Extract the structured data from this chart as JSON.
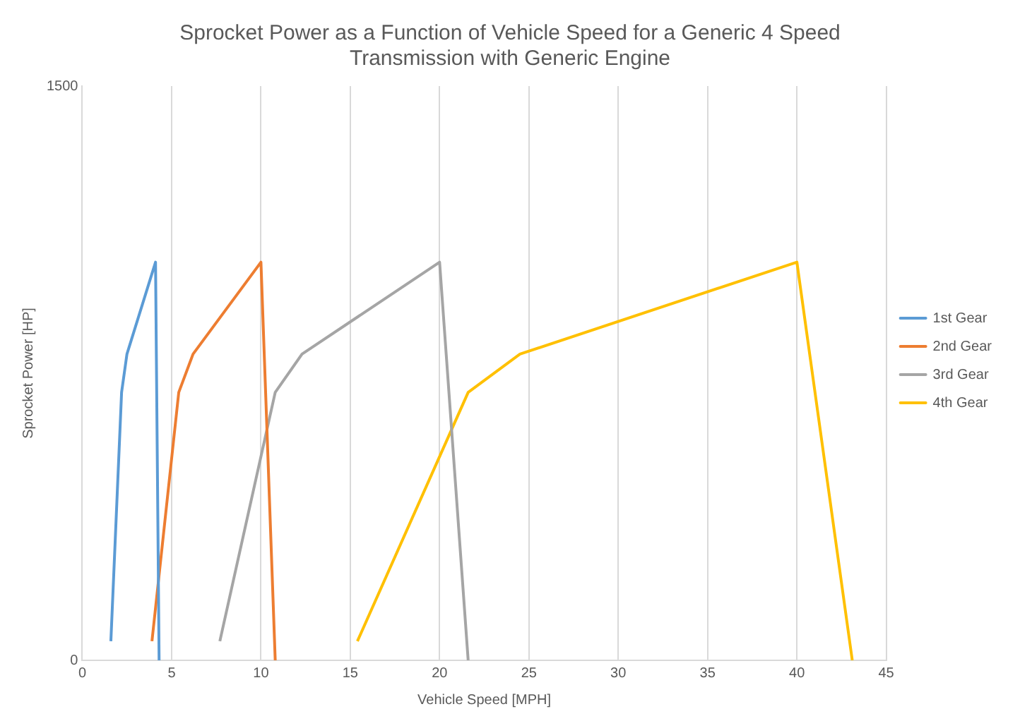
{
  "chart_data": {
    "type": "line",
    "title": "Sprocket Power as a Function of Vehicle Speed for a Generic 4 Speed Transmission with Generic Engine",
    "xlabel": "Vehicle Speed [MPH]",
    "ylabel": "Sprocket Power [HP]",
    "xlim": [
      0,
      45
    ],
    "xticks": [
      0,
      5,
      10,
      15,
      20,
      25,
      30,
      35,
      40,
      45
    ],
    "ylim": [
      0,
      1500
    ],
    "yticks": [
      0,
      1500
    ],
    "grid": "x",
    "legend": "right",
    "marker": "none",
    "series": [
      {
        "name": "1st Gear",
        "color": "#5b9bd5",
        "x": [
          1.6,
          2.2,
          2.5,
          4.1,
          4.3
        ],
        "values": [
          50,
          700,
          800,
          1040,
          0
        ]
      },
      {
        "name": "2nd Gear",
        "color": "#ed7d31",
        "x": [
          3.9,
          5.4,
          6.2,
          10,
          10.8
        ],
        "values": [
          50,
          700,
          800,
          1040,
          0
        ]
      },
      {
        "name": "3rd Gear",
        "color": "#a5a5a5",
        "x": [
          7.7,
          10.8,
          12.3,
          20,
          21.6
        ],
        "values": [
          50,
          700,
          800,
          1040,
          0
        ]
      },
      {
        "name": "4th Gear",
        "color": "#ffc000",
        "x": [
          15.4,
          21.6,
          24.5,
          40,
          43.1
        ],
        "values": [
          50,
          700,
          800,
          1040,
          0
        ]
      }
    ]
  }
}
